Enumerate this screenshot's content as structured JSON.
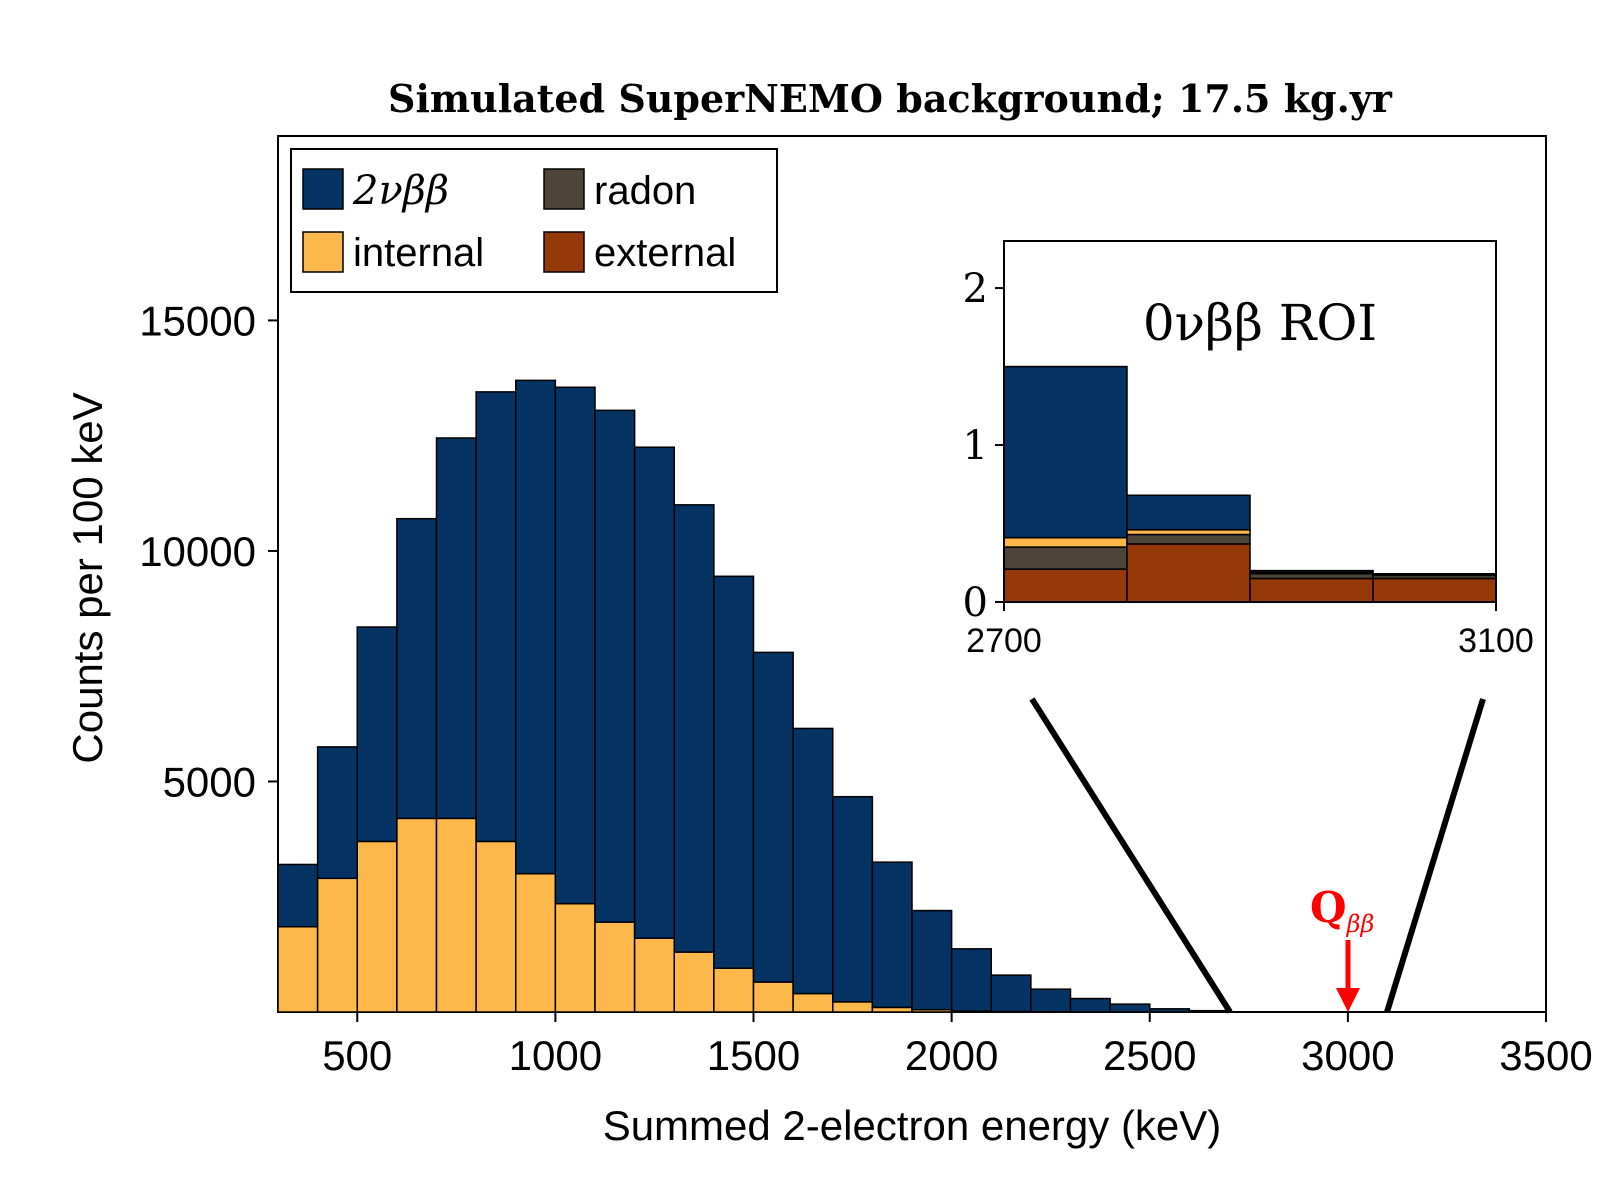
{
  "chart_data": {
    "type": "bar",
    "stacked": true,
    "title": "Simulated SuperNEMO background; 17.5 kg.yr",
    "xlabel": "Summed 2-electron energy (keV)",
    "ylabel": "Counts per 100 keV",
    "xlim": [
      300,
      3500
    ],
    "ylim": [
      0,
      19000
    ],
    "xticks": [
      "500",
      "1000",
      "1500",
      "2000",
      "2500",
      "3000",
      "3500"
    ],
    "yticks": [
      "5000",
      "10000",
      "15000"
    ],
    "legend_position": "top-left",
    "colors": {
      "2vbb": "#053363",
      "internal": "#fdb84c",
      "radon": "#4e4539",
      "external": "#963909",
      "qbb": "#ff0000",
      "bar_edge": "#000000"
    },
    "bin_edges": [
      300,
      400,
      500,
      600,
      700,
      800,
      900,
      1000,
      1100,
      1200,
      1300,
      1400,
      1500,
      1600,
      1700,
      1800,
      1900,
      2000,
      2100,
      2200,
      2300,
      2400,
      2500,
      2600,
      2700,
      2800,
      2900,
      3000,
      3100,
      3200,
      3300,
      3400,
      3500
    ],
    "series": [
      {
        "name": "external",
        "legend_label": "external",
        "values": [
          0,
          0,
          0,
          0,
          0,
          0,
          0,
          0,
          0,
          0,
          0,
          0,
          0,
          0,
          0,
          0,
          0,
          0,
          0,
          0,
          0,
          0,
          0,
          0,
          0,
          0,
          0,
          0,
          0,
          0,
          0,
          0
        ]
      },
      {
        "name": "radon",
        "legend_label": "radon",
        "values": [
          0,
          0,
          0,
          0,
          0,
          0,
          0,
          0,
          0,
          0,
          0,
          0,
          0,
          0,
          0,
          0,
          0,
          0,
          0,
          0,
          0,
          0,
          0,
          0,
          0,
          0,
          0,
          0,
          0,
          0,
          0,
          0
        ]
      },
      {
        "name": "internal",
        "legend_label": "internal",
        "values": [
          1850,
          2900,
          3700,
          4200,
          4200,
          3700,
          3000,
          2350,
          1950,
          1600,
          1300,
          950,
          650,
          400,
          220,
          100,
          50,
          20,
          10,
          5,
          2,
          1,
          0,
          0,
          0,
          0,
          0,
          0,
          0,
          0,
          0,
          0
        ]
      },
      {
        "name": "2vbb",
        "legend_label": "2νββ",
        "values": [
          1350,
          2850,
          4650,
          6500,
          8250,
          9750,
          10700,
          11200,
          11100,
          10650,
          9700,
          8500,
          7150,
          5750,
          4450,
          3150,
          2150,
          1350,
          790,
          490,
          290,
          170,
          69,
          29,
          1,
          0,
          0,
          0,
          0,
          0,
          0,
          0
        ]
      }
    ],
    "qbb": {
      "label": "Q",
      "subscript": "ββ",
      "x": 3000
    },
    "inset": {
      "title": "0νββ ROI",
      "xlim": [
        2700,
        3100
      ],
      "ylim": [
        0,
        2.3
      ],
      "xticks": [
        "2700",
        "3100"
      ],
      "yticks": [
        "0",
        "1",
        "2"
      ],
      "bin_edges": [
        2700,
        2800,
        2900,
        3000,
        3100
      ],
      "series": [
        {
          "name": "external",
          "values": [
            0.21,
            0.37,
            0.15,
            0.15
          ]
        },
        {
          "name": "radon",
          "values": [
            0.14,
            0.06,
            0.03,
            0.02
          ]
        },
        {
          "name": "internal",
          "values": [
            0.06,
            0.03,
            0.01,
            0.005
          ]
        },
        {
          "name": "2vbb",
          "values": [
            1.09,
            0.22,
            0.01,
            0.005
          ]
        }
      ]
    }
  }
}
